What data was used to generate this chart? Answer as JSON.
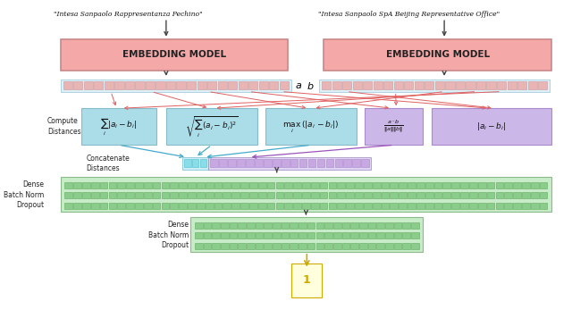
{
  "bg_color": "#ffffff",
  "embed_box_color": "#f4a8a8",
  "embed_box_edge": "#c88888",
  "embed_text_color": "#222222",
  "embed_label": "EMBEDDING MODEL",
  "vec_bg": "#ddf0f8",
  "vec_cell": "#e8b4b4",
  "vec_cell_edge": "#cc9898",
  "dist_box_cyan": "#aadde8",
  "dist_box_purple": "#ccb8e8",
  "dist_edge_cyan": "#88bbc8",
  "dist_edge_purple": "#aa88cc",
  "concat_bg_cyan": "#cceef8",
  "concat_cell_cyan": "#88dde8",
  "concat_cell_cyan_edge": "#55bbcc",
  "concat_bg_purple": "#e0d4f4",
  "concat_cell_purple": "#c8a8e0",
  "concat_cell_purple_edge": "#aa88cc",
  "dense_bg": "#c8ecc8",
  "dense_cell": "#8acc8a",
  "dense_cell_edge": "#66aa66",
  "arrow_red": "#e06060",
  "arrow_dark": "#444444",
  "arrow_cyan": "#44aacc",
  "arrow_purple": "#9955bb",
  "arrow_yellow": "#ccaa00",
  "text_left": "\"Intesa Sanpaolo Rappresentanza Pechino\"",
  "text_right": "\"Intesa Sanpaolo SpA Beijing Representative Office\"",
  "dist_labels": [
    "$\\sum_i |a_i - b_i|$",
    "$\\sqrt{\\sum_i (a_i - b_i)^2}$",
    "$\\max_i\\,(|a_i - b_i|)$",
    "$\\frac{a \\cdot b}{\\|a\\|\\|b\\|}$",
    "$|a_i - b_i|$"
  ]
}
